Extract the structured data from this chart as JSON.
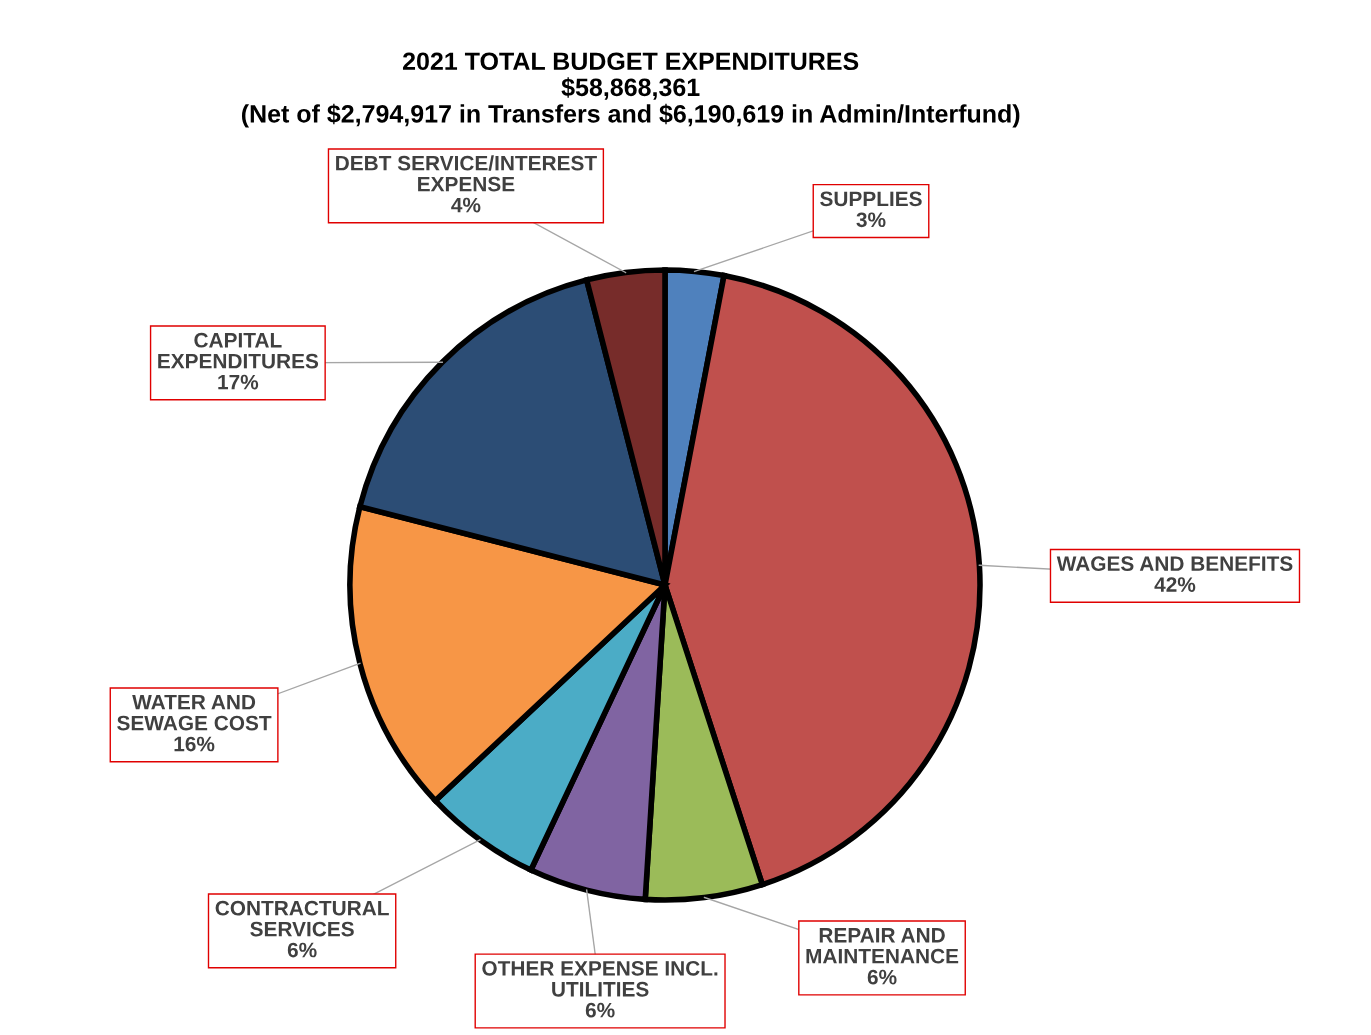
{
  "chart_data": {
    "type": "pie",
    "title": "2021 TOTAL BUDGET EXPENDITURES\n$58,868,361\n(Net of $2,794,917 in Transfers and $6,190,619 in Admin/Interfund)",
    "categories": [
      "SUPPLIES",
      "WAGES AND BENEFITS",
      "REPAIR AND\nMAINTENANCE",
      "OTHER EXPENSE INCL.\nUTILITIES",
      "CONTRACTURAL\nSERVICES",
      "WATER AND\nSEWAGE COST",
      "CAPITAL\nEXPENDITURES",
      "DEBT SERVICE/INTEREST\nEXPENSE"
    ],
    "values": [
      3,
      42,
      6,
      6,
      6,
      16,
      17,
      4
    ],
    "colors": [
      "#4f81bd",
      "#c0504d",
      "#9bbb59",
      "#8064a2",
      "#4bacc6",
      "#f79646",
      "#2c4d75",
      "#772c2a"
    ],
    "value_labels": [
      "3%",
      "42%",
      "6%",
      "6%",
      "6%",
      "16%",
      "17%",
      "4%"
    ],
    "legend": false
  }
}
